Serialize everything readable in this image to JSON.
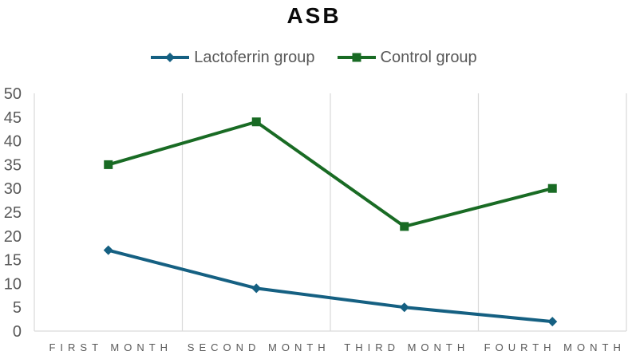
{
  "title": "ASB",
  "legend": {
    "items": [
      {
        "label": "Lactoferrin group",
        "marker": "diamond",
        "color": "#156082"
      },
      {
        "label": "Control group",
        "marker": "square",
        "color": "#196B24"
      }
    ]
  },
  "chart_data": {
    "type": "line",
    "title": "ASB",
    "categories": [
      "FIRST MONTH",
      "SECOND MONTH",
      "THIRD MONTH",
      "FOURTH MONTH"
    ],
    "series": [
      {
        "name": "Lactoferrin group",
        "values": [
          17,
          9,
          5,
          2
        ],
        "color": "#156082",
        "marker": "diamond"
      },
      {
        "name": "Control group",
        "values": [
          35,
          44,
          22,
          30
        ],
        "color": "#196B24",
        "marker": "square"
      }
    ],
    "ylim": [
      0,
      50
    ],
    "ytick_step": 5,
    "ytick_labels": [
      "0",
      "5",
      "10",
      "15",
      "20",
      "25",
      "30",
      "35",
      "40",
      "45",
      "50"
    ],
    "grid": "vertical-only",
    "legend_position": "top-center",
    "colors": {
      "axis_text": "#595959",
      "gridline": "#D9D9D9",
      "title_text": "#0a0a0a"
    }
  }
}
